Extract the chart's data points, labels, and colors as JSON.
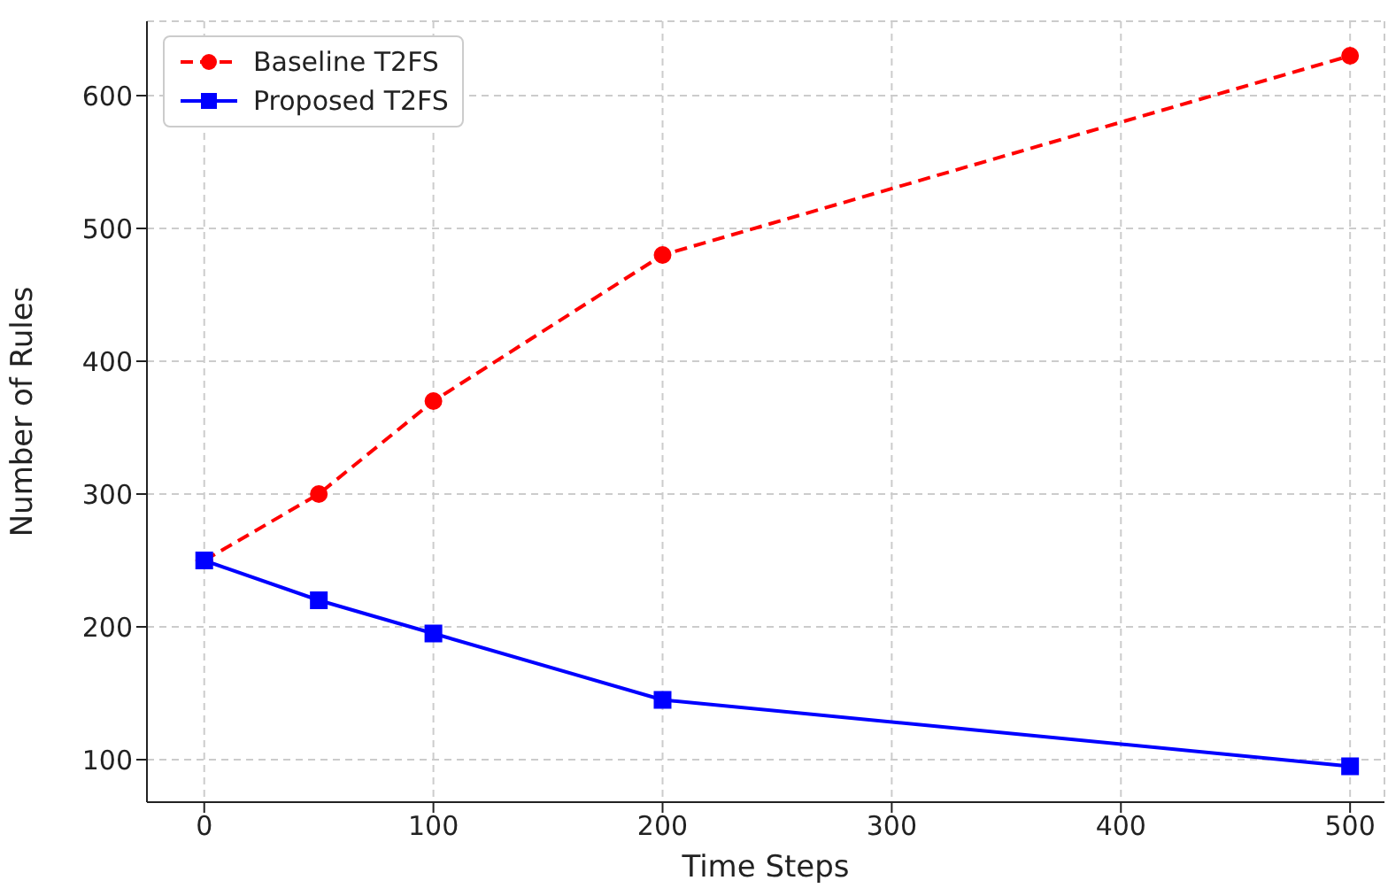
{
  "chart_data": {
    "type": "line",
    "xlabel": "Time Steps",
    "ylabel": "Number of Rules",
    "x": [
      0,
      50,
      100,
      200,
      500
    ],
    "series": [
      {
        "name": "Baseline T2FS",
        "color": "#ff0000",
        "values": [
          250,
          300,
          370,
          480,
          630
        ],
        "marker": "circle",
        "line_style": "dashed"
      },
      {
        "name": "Proposed T2FS",
        "color": "#0000ff",
        "values": [
          250,
          220,
          195,
          145,
          95
        ],
        "marker": "square",
        "line_style": "solid"
      }
    ],
    "xlim": [
      -25,
      515
    ],
    "xticks": [
      0,
      100,
      200,
      300,
      400,
      500
    ],
    "ylim": [
      68,
      656
    ],
    "yticks": [
      100,
      200,
      300,
      400,
      500,
      600
    ],
    "grid": true,
    "legend": "top left"
  }
}
